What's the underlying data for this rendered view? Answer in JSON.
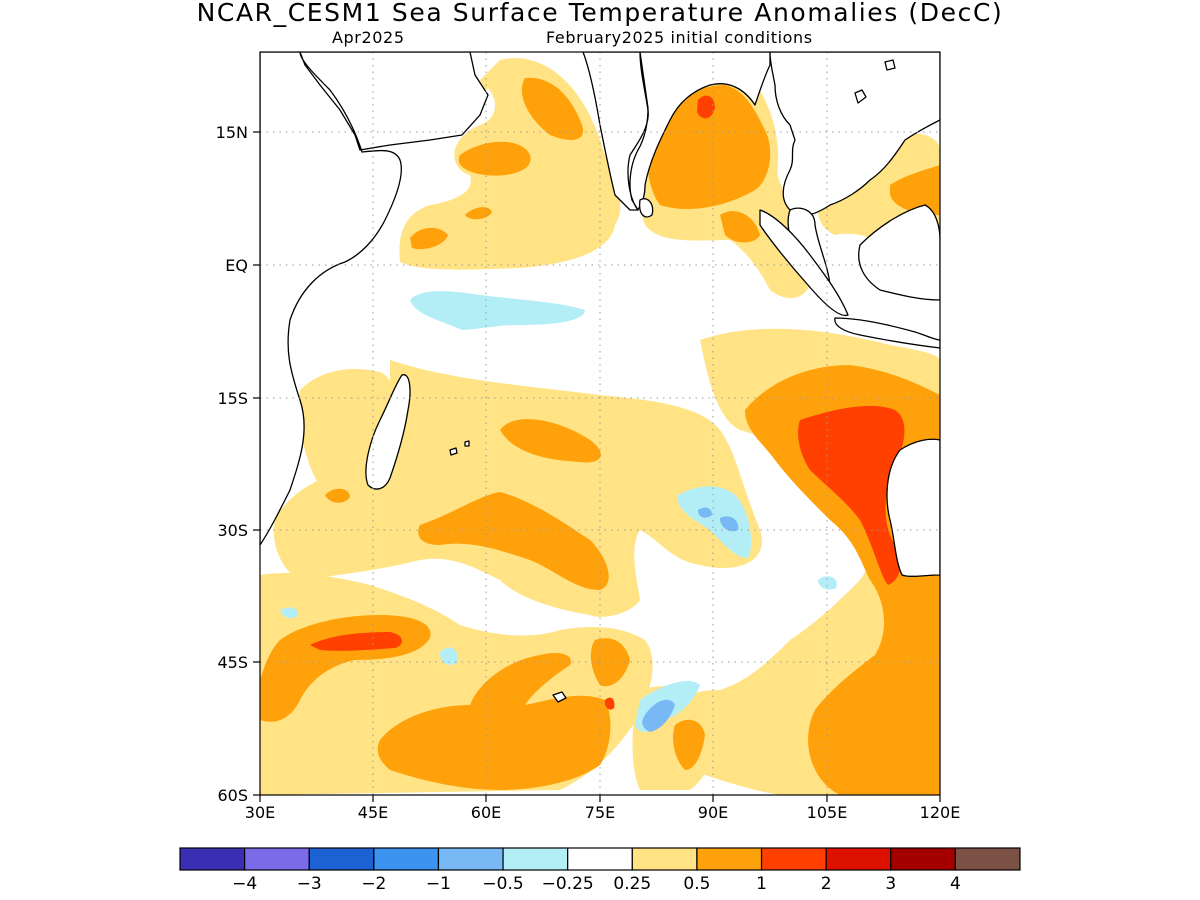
{
  "header": {
    "title": "NCAR_CESM1 Sea Surface Temperature Anomalies (DecC)",
    "target_month": "Apr2025",
    "init_conditions": "February2025 initial conditions"
  },
  "map": {
    "lon_range": [
      30,
      120
    ],
    "lat_range": [
      -60,
      24
    ],
    "x_ticks": [
      "30E",
      "45E",
      "60E",
      "75E",
      "90E",
      "105E",
      "120E"
    ],
    "y_ticks": [
      "15N",
      "EQ",
      "15S",
      "30S",
      "45S",
      "60S"
    ],
    "grid": "dotted",
    "coastlines": true
  },
  "colorbar": {
    "labels": [
      "−4",
      "−3",
      "−2",
      "−1",
      "−0.5",
      "−0.25",
      "0.25",
      "0.5",
      "1",
      "2",
      "3",
      "4"
    ],
    "colors": [
      "#3a2fb3",
      "#7b6be8",
      "#1d62d4",
      "#3c93f0",
      "#78b8f5",
      "#b3eef7",
      "#ffffff",
      "#ffe385",
      "#ffa10a",
      "#ff4000",
      "#dd1100",
      "#a50000",
      "#7b5045"
    ]
  },
  "palette": {
    "land": "#ffffff",
    "coast": "#000000",
    "pos_weak": "#ffe385",
    "pos_mod": "#ffa10a",
    "pos_strong": "#ff4000",
    "neg_weak": "#b3eef7",
    "neg_mod": "#78b8f5"
  }
}
